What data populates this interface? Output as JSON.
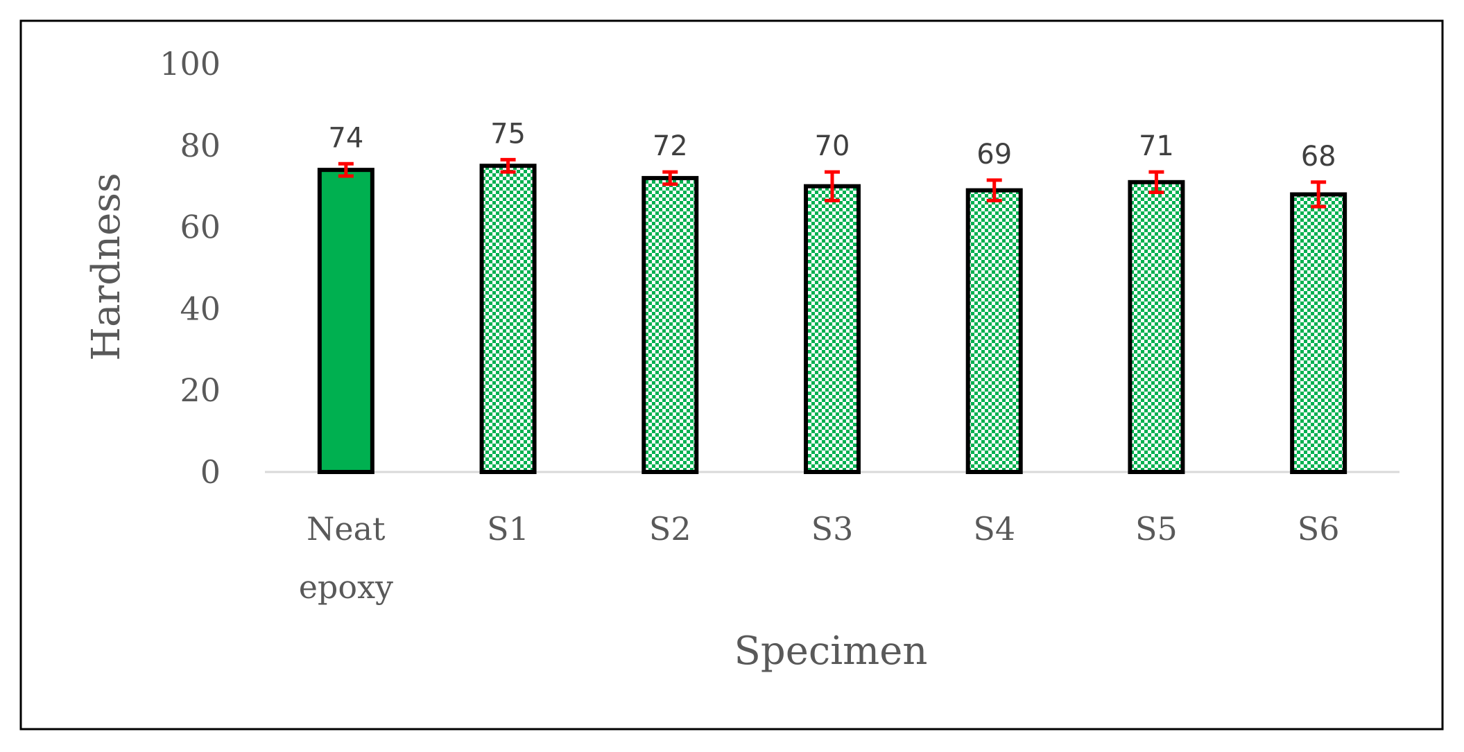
{
  "chart_data": {
    "type": "bar",
    "categories": [
      "Neat epoxy",
      "S1",
      "S2",
      "S3",
      "S4",
      "S5",
      "S6"
    ],
    "category_lines": [
      [
        "Neat",
        "epoxy"
      ],
      [
        "S1"
      ],
      [
        "S2"
      ],
      [
        "S3"
      ],
      [
        "S4"
      ],
      [
        "S5"
      ],
      [
        "S6"
      ]
    ],
    "values": [
      74,
      75,
      72,
      70,
      69,
      71,
      68
    ],
    "data_labels": [
      "74",
      "75",
      "72",
      "70",
      "69",
      "71",
      "68"
    ],
    "error": [
      1.5,
      1.5,
      1.5,
      3.5,
      2.5,
      2.5,
      3.0
    ],
    "fill_styles": [
      "solid",
      "checker",
      "checker",
      "checker",
      "checker",
      "checker",
      "checker"
    ],
    "xlabel": "Specimen",
    "ylabel": "Hardness",
    "ylim": [
      0,
      100
    ],
    "yticks": [
      0,
      20,
      40,
      60,
      80,
      100
    ],
    "ytick_labels": [
      "0",
      "20",
      "40",
      "60",
      "80",
      "100"
    ],
    "grid": false,
    "colors": {
      "bar_fill": "#00b050",
      "bar_outline": "#000000",
      "checker_light": "#ffffff",
      "error_bar": "#ff0000",
      "axis_line": "#d9d9d9",
      "frame": "#000000"
    }
  }
}
